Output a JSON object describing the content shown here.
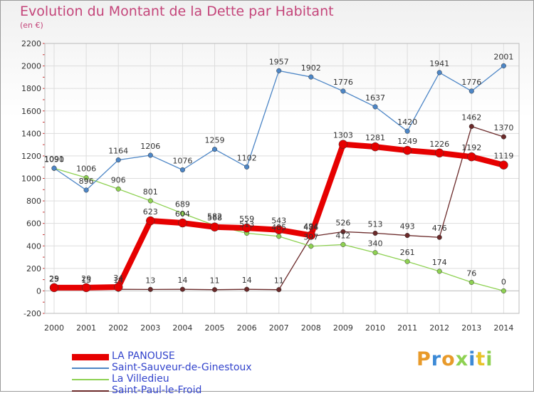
{
  "title": "Evolution du Montant de la Dette par Habitant",
  "subtitle": "(en €)",
  "logo": "Proxiti",
  "chart_data": {
    "type": "line",
    "title": "Evolution du Montant de la Dette par Habitant",
    "subtitle": "(en €)",
    "x": [
      2000,
      2001,
      2002,
      2003,
      2004,
      2005,
      2006,
      2007,
      2008,
      2009,
      2010,
      2011,
      2012,
      2013,
      2014
    ],
    "ylim": [
      -200,
      2200
    ],
    "yticks": [
      -200,
      0,
      200,
      400,
      600,
      800,
      1000,
      1200,
      1400,
      1600,
      1800,
      2000,
      2200
    ],
    "grid": true,
    "legend_position": "bottom-left",
    "series": [
      {
        "name": "LA PANOUSE",
        "color": "#e60000",
        "values": [
          29,
          29,
          34,
          623,
          604,
          568,
          559,
          543,
          494,
          1303,
          1281,
          1249,
          1226,
          1192,
          1119
        ]
      },
      {
        "name": "Saint-Sauveur-de-Ginestoux",
        "color": "#4d86c6",
        "values": [
          1091,
          896,
          1164,
          1206,
          1076,
          1259,
          1102,
          1957,
          1902,
          1776,
          1637,
          1420,
          1941,
          1776,
          2001
        ]
      },
      {
        "name": "La Villedieu",
        "color": "#8ed152",
        "values": [
          1090,
          1006,
          906,
          801,
          689,
          582,
          513,
          485,
          397,
          412,
          340,
          261,
          174,
          76,
          0
        ]
      },
      {
        "name": "Saint-Paul-le-Froid",
        "color": "#6b2a2a",
        "values": [
          25,
          15,
          14,
          13,
          14,
          11,
          14,
          11,
          484,
          526,
          513,
          493,
          476,
          1462,
          1370
        ]
      }
    ]
  }
}
